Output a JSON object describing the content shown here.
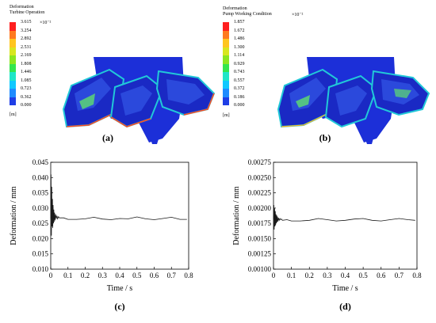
{
  "colors": {
    "legend": [
      "#1f3ee6",
      "#1f8cff",
      "#10c8ff",
      "#1fe6c8",
      "#33e64d",
      "#8ce61f",
      "#d8e61f",
      "#ffc51f",
      "#ff7a1f",
      "#ff1f1f"
    ],
    "blade_dark": "#1a29c4",
    "blade_mid": "#2f4fe0",
    "blade_light": "#21c8d8",
    "blade_green": "#5fe06e",
    "hub": "#1c2fd8"
  },
  "panel_a": {
    "title_line1": "Deformation",
    "title_line2": "Turbine Operation",
    "exponent": "×10⁻²",
    "labels": [
      "3.615",
      "3.254",
      "2.892",
      "2.531",
      "2.169",
      "1.808",
      "1.446",
      "1.085",
      "0.723",
      "0.362",
      "0.000"
    ],
    "unit": "[m]",
    "caption": "(a)"
  },
  "panel_b": {
    "title_line1": "Deformation",
    "title_line2": "Pump Working Condition",
    "exponent": "×10⁻²",
    "labels": [
      "1.857",
      "1.672",
      "1.486",
      "1.300",
      "1.114",
      "0.929",
      "0.743",
      "0.557",
      "0.372",
      "0.186",
      "0.000"
    ],
    "unit": "[m]",
    "caption": "(b)"
  },
  "chart_data": [
    {
      "type": "line",
      "caption": "(c)",
      "xlabel": "Time / s",
      "ylabel": "Deformation / mm",
      "xlim": [
        0,
        0.8
      ],
      "ylim": [
        0.01,
        0.045
      ],
      "xticks": [
        "0",
        "0.1",
        "0.2",
        "0.3",
        "0.4",
        "0.5",
        "0.6",
        "0.7",
        "0.8"
      ],
      "yticks": [
        "0.010",
        "0.015",
        "0.020",
        "0.025",
        "0.030",
        "0.035",
        "0.040",
        "0.045"
      ],
      "series": [
        {
          "x": [
            0,
            0.002,
            0.004,
            0.006,
            0.008,
            0.01,
            0.012,
            0.014,
            0.016,
            0.018,
            0.02,
            0.022,
            0.025,
            0.028,
            0.032,
            0.036,
            0.04,
            0.045,
            0.05,
            0.075,
            0.1,
            0.15,
            0.2,
            0.25,
            0.3,
            0.35,
            0.4,
            0.45,
            0.5,
            0.55,
            0.6,
            0.65,
            0.7,
            0.75,
            0.79
          ],
          "values": [
            0.0265,
            0.041,
            0.021,
            0.037,
            0.024,
            0.033,
            0.0235,
            0.031,
            0.025,
            0.0295,
            0.0255,
            0.0285,
            0.026,
            0.028,
            0.0265,
            0.0275,
            0.0265,
            0.0272,
            0.0268,
            0.0268,
            0.0263,
            0.0263,
            0.0265,
            0.027,
            0.0264,
            0.0262,
            0.0266,
            0.0265,
            0.0271,
            0.0265,
            0.0262,
            0.0266,
            0.027,
            0.0263,
            0.0263
          ]
        }
      ]
    },
    {
      "type": "line",
      "caption": "(d)",
      "xlabel": "Time / s",
      "ylabel": "Deformation / mm",
      "xlim": [
        0,
        0.8
      ],
      "ylim": [
        0.001,
        0.00275
      ],
      "xticks": [
        "0",
        "0.1",
        "0.2",
        "0.3",
        "0.4",
        "0.5",
        "0.6",
        "0.7",
        "0.8"
      ],
      "yticks": [
        "0.00100",
        "0.00125",
        "0.00150",
        "0.00175",
        "0.00200",
        "0.00225",
        "0.00250",
        "0.00275"
      ],
      "series": [
        {
          "x": [
            0,
            0.002,
            0.004,
            0.006,
            0.008,
            0.01,
            0.012,
            0.014,
            0.016,
            0.018,
            0.02,
            0.022,
            0.025,
            0.028,
            0.032,
            0.036,
            0.04,
            0.045,
            0.05,
            0.075,
            0.1,
            0.15,
            0.2,
            0.25,
            0.3,
            0.35,
            0.4,
            0.45,
            0.5,
            0.55,
            0.6,
            0.65,
            0.7,
            0.75,
            0.79
          ],
          "values": [
            0.00182,
            0.00205,
            0.00165,
            0.002,
            0.0017,
            0.00195,
            0.00172,
            0.0019,
            0.00175,
            0.00188,
            0.00177,
            0.00186,
            0.00178,
            0.00184,
            0.0018,
            0.00183,
            0.00181,
            0.00182,
            0.0018,
            0.00181,
            0.00179,
            0.00179,
            0.0018,
            0.00183,
            0.00181,
            0.00179,
            0.0018,
            0.00182,
            0.00183,
            0.0018,
            0.00179,
            0.00181,
            0.00183,
            0.00181,
            0.0018
          ]
        }
      ]
    }
  ]
}
